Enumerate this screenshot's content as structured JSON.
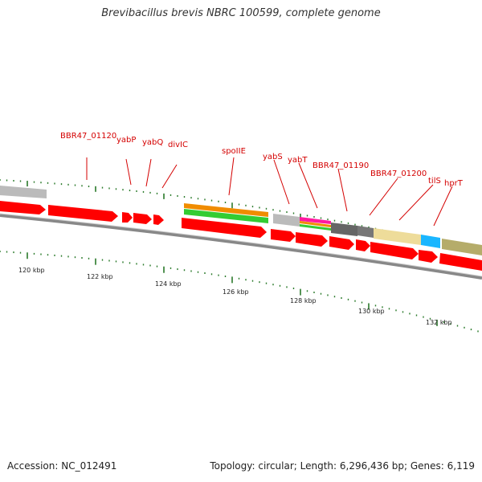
{
  "title": "Brevibacillus brevis NBRC 100599, complete genome",
  "footer": {
    "accession": "Accession: NC_012491",
    "topology": "Topology: circular; Length: 6,296,436 bp; Genes: 6,119"
  },
  "colors": {
    "cds": "#ff0000",
    "gene_label": "#d40000",
    "ticks": "#2a7a2a",
    "backbone": "#888888"
  },
  "scale": {
    "unit": "kbp",
    "labels": [
      "120 kbp",
      "122 kbp",
      "124 kbp",
      "126 kbp",
      "128 kbp",
      "130 kbp",
      "132 kbp"
    ]
  },
  "gene_labels": [
    "BBR47_01120",
    "yabP",
    "yabQ",
    "divIC",
    "spoIIE",
    "yabS",
    "yabT",
    "BBR47_01190",
    "BBR47_01200",
    "tilS",
    "hprT"
  ]
}
